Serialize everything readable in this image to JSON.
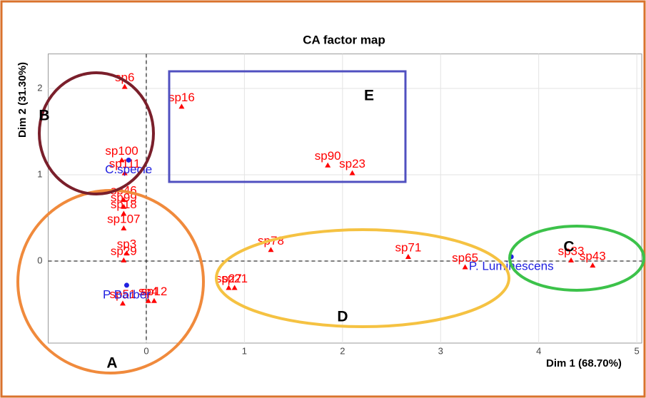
{
  "chart_data": {
    "type": "scatter",
    "title": "CA factor map",
    "x_label": "Dim 1 (68.70%)",
    "y_label": "Dim 2 (31.30%)",
    "xlim": [
      -1.0,
      5.05
    ],
    "ylim": [
      -0.95,
      2.4
    ],
    "xticks": [
      0,
      1,
      2,
      3,
      4,
      5
    ],
    "yticks": [
      0,
      1,
      2
    ],
    "grid": true,
    "reference_lines": {
      "x": 0,
      "y": 0
    },
    "row_points": {
      "color": "#ff0000",
      "labels": [
        "sp6",
        "sp16",
        "sp90",
        "sp23",
        "sp111",
        "sp78",
        "sp71",
        "sp65",
        "sp29",
        "sp3",
        "sp107",
        "sp18",
        "sp99",
        "sp46",
        "sp12",
        "sp4",
        "sp27",
        "sp21",
        "sp51",
        "sp100",
        "sp33",
        "sp43"
      ],
      "x": [
        -0.22,
        0.36,
        1.85,
        2.1,
        -0.22,
        1.27,
        2.67,
        3.25,
        -0.23,
        -0.2,
        -0.23,
        -0.23,
        -0.23,
        -0.23,
        0.08,
        0.02,
        0.84,
        0.9,
        -0.24,
        -0.25,
        4.33,
        4.55
      ],
      "y": [
        2.02,
        1.79,
        1.11,
        1.02,
        1.02,
        0.13,
        0.05,
        -0.07,
        0.01,
        0.09,
        0.38,
        0.55,
        0.63,
        0.71,
        -0.46,
        -0.46,
        -0.31,
        -0.31,
        -0.49,
        1.17,
        0.01,
        -0.05
      ]
    },
    "col_points": {
      "color": "#2020e0",
      "labels": [
        "C.specie",
        "P Barber",
        "P. Luminescens"
      ],
      "x": [
        -0.18,
        -0.2,
        3.72
      ],
      "y": [
        1.17,
        -0.28,
        0.05
      ]
    },
    "annotations": [
      "A",
      "B",
      "C",
      "D",
      "E"
    ]
  }
}
